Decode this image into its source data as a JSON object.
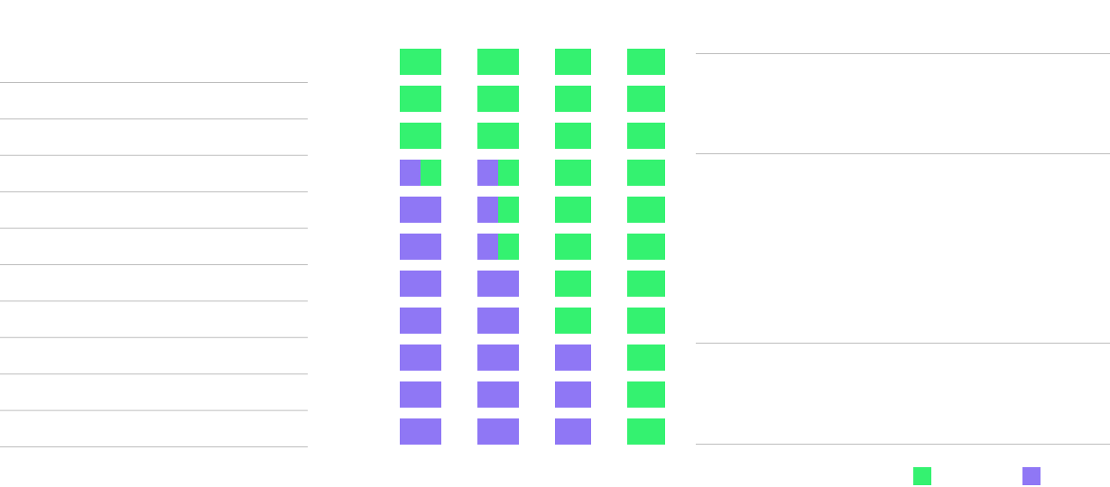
{
  "chart_data": {
    "type": "bar",
    "stacked": true,
    "columns": [
      {
        "cells": [
          {
            "purple": 0,
            "green": 1
          },
          {
            "purple": 0,
            "green": 1
          },
          {
            "purple": 0,
            "green": 1
          },
          {
            "purple": 0.5,
            "green": 0.5
          },
          {
            "purple": 1,
            "green": 0
          },
          {
            "purple": 1,
            "green": 0
          },
          {
            "purple": 1,
            "green": 0
          },
          {
            "purple": 1,
            "green": 0
          },
          {
            "purple": 1,
            "green": 0
          },
          {
            "purple": 1,
            "green": 0
          },
          {
            "purple": 1,
            "green": 0
          }
        ]
      },
      {
        "cells": [
          {
            "purple": 0,
            "green": 1
          },
          {
            "purple": 0,
            "green": 1
          },
          {
            "purple": 0,
            "green": 1
          },
          {
            "purple": 0.5,
            "green": 0.5
          },
          {
            "purple": 0.5,
            "green": 0.5
          },
          {
            "purple": 0.5,
            "green": 0.5
          },
          {
            "purple": 1,
            "green": 0
          },
          {
            "purple": 1,
            "green": 0
          },
          {
            "purple": 1,
            "green": 0
          },
          {
            "purple": 1,
            "green": 0
          },
          {
            "purple": 1,
            "green": 0
          }
        ]
      },
      {
        "cells": [
          {
            "purple": 0,
            "green": 1
          },
          {
            "purple": 0,
            "green": 1
          },
          {
            "purple": 0,
            "green": 1
          },
          {
            "purple": 0,
            "green": 1
          },
          {
            "purple": 0,
            "green": 1
          },
          {
            "purple": 0,
            "green": 1
          },
          {
            "purple": 0,
            "green": 1
          },
          {
            "purple": 0,
            "green": 1
          },
          {
            "purple": 1,
            "green": 0
          },
          {
            "purple": 1,
            "green": 0
          },
          {
            "purple": 1,
            "green": 0
          }
        ]
      },
      {
        "cells": [
          {
            "purple": 0,
            "green": 1
          },
          {
            "purple": 0,
            "green": 1
          },
          {
            "purple": 0,
            "green": 1
          },
          {
            "purple": 0,
            "green": 1
          },
          {
            "purple": 0,
            "green": 1
          },
          {
            "purple": 0,
            "green": 1
          },
          {
            "purple": 0,
            "green": 1
          },
          {
            "purple": 0,
            "green": 1
          },
          {
            "purple": 0,
            "green": 1
          },
          {
            "purple": 0,
            "green": 1
          },
          {
            "purple": 0,
            "green": 1
          }
        ]
      }
    ],
    "legend": [
      {
        "key": "green",
        "color": "#34f270"
      },
      {
        "key": "purple",
        "color": "#8f77f5"
      }
    ],
    "left_table_rows": 10,
    "right_table_sections": 3,
    "colors": {
      "green": "#34f270",
      "purple": "#8f77f5",
      "rule": "#bdbdbd"
    }
  }
}
